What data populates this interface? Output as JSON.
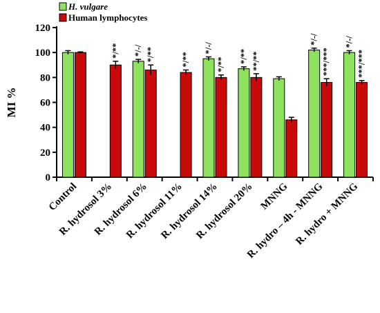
{
  "chart_data": {
    "type": "bar",
    "ylabel": "MI %",
    "xlabel": "",
    "ylim": [
      0,
      120
    ],
    "yticks": [
      "0",
      "20",
      "40",
      "60",
      "80",
      "100",
      "120"
    ],
    "categories": [
      "Control",
      "R. hydrosol 3%",
      "R. hydrosol 6%",
      "R. hydrosol 11%",
      "R. hydrosol 14%",
      "R. hydrosol 20%",
      "MNNG",
      "R. hydro – 4h - MNNG",
      "R. hydro + MNNG"
    ],
    "legend_position": "top-left",
    "series": [
      {
        "name": "H. vulgare",
        "color": "#8ee25e",
        "values": [
          100,
          null,
          93,
          null,
          95,
          87,
          79,
          102,
          100
        ],
        "errors": [
          1.5,
          null,
          1.5,
          null,
          1.5,
          1.5,
          1.5,
          1.5,
          1.5
        ],
        "annotations": [
          "",
          "",
          "*/-/",
          "",
          "*/-/",
          "*/**",
          "",
          "*/-/",
          "*/-/"
        ]
      },
      {
        "name": "Human lymphocytes",
        "color": "#c90a0a",
        "values": [
          100,
          90,
          86,
          84,
          80,
          80,
          46,
          76,
          76
        ],
        "errors": [
          0.5,
          3,
          4,
          2,
          2,
          3,
          2,
          3,
          1.5
        ],
        "annotations": [
          "",
          "*/**",
          "*/**",
          "*/**",
          "*/**",
          "**/**",
          "",
          "***/***",
          "***/***"
        ]
      }
    ]
  }
}
